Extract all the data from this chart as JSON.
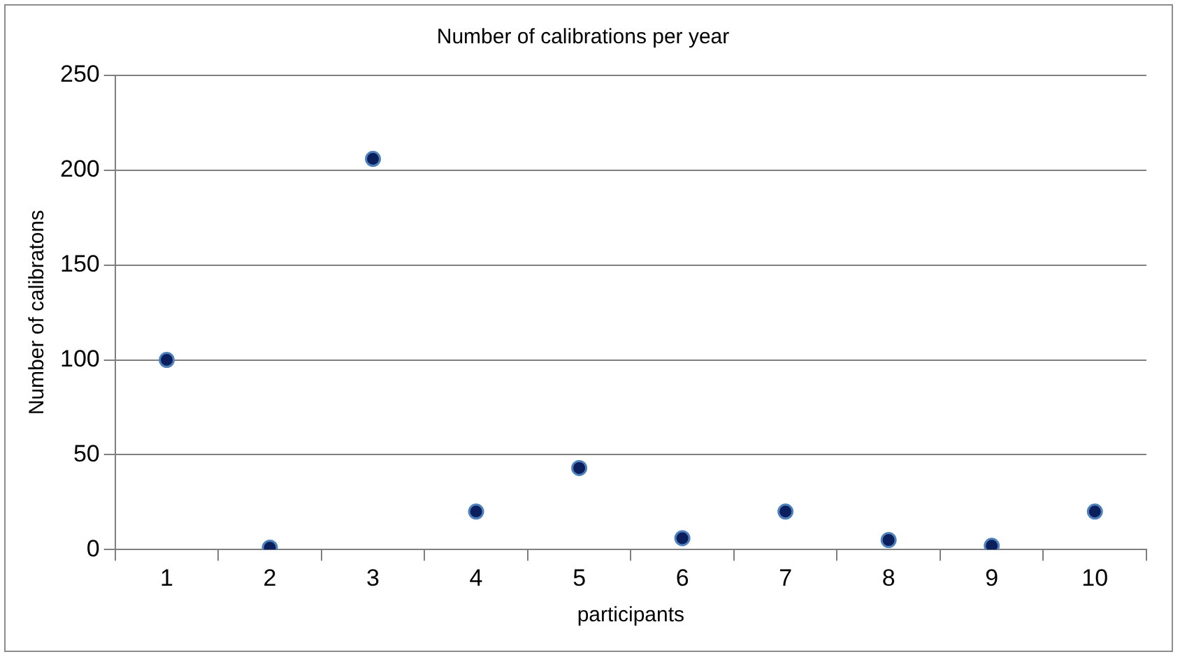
{
  "chart_data": {
    "type": "scatter",
    "title": "Number of calibrations per year",
    "xlabel": "participants",
    "ylabel": "Number of calibratons",
    "categories": [
      "1",
      "2",
      "3",
      "4",
      "5",
      "6",
      "7",
      "8",
      "9",
      "10"
    ],
    "values": [
      100,
      1,
      206,
      20,
      43,
      6,
      20,
      5,
      2,
      20
    ],
    "color": "#0a1f5c",
    "ylim": [
      0,
      250
    ],
    "yticks": [
      0,
      50,
      100,
      150,
      200,
      250
    ],
    "grid": "y",
    "legend": false,
    "marker": "circle"
  }
}
